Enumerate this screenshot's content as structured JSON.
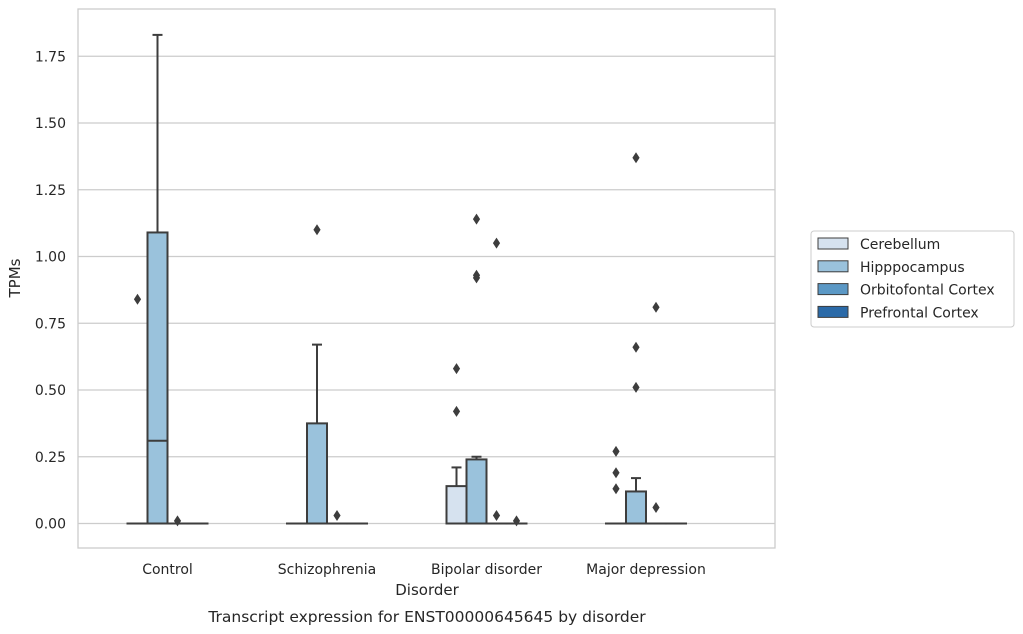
{
  "chart_data": {
    "type": "box",
    "title": "",
    "caption": "Transcript expression for ENST00000645645 by disorder",
    "xlabel": "Disorder",
    "ylabel": "TPMs",
    "ylim": [
      -0.09,
      1.93
    ],
    "yticks": [
      "0.00",
      "0.25",
      "0.50",
      "0.75",
      "1.00",
      "1.25",
      "1.50",
      "1.75"
    ],
    "ytick_values": [
      0,
      0.25,
      0.5,
      0.75,
      1.0,
      1.25,
      1.5,
      1.75
    ],
    "grid": true,
    "legend_position": "right",
    "categories": [
      "Control",
      "Schizophrenia",
      "Bipolar disorder",
      "Major depression"
    ],
    "series": [
      {
        "name": "Cerebellum",
        "color": "#d6e2ef",
        "boxes": [
          {
            "q1": 0,
            "median": 0,
            "q3": 0,
            "whisker_low": 0,
            "whisker_high": 0,
            "outliers": [
              0.84
            ]
          },
          {
            "q1": 0,
            "median": 0,
            "q3": 0,
            "whisker_low": 0,
            "whisker_high": 0,
            "outliers": []
          },
          {
            "q1": 0,
            "median": 0,
            "q3": 0.14,
            "whisker_low": 0,
            "whisker_high": 0.21,
            "outliers": [
              0.42,
              0.58
            ]
          },
          {
            "q1": 0,
            "median": 0,
            "q3": 0,
            "whisker_low": 0,
            "whisker_high": 0,
            "outliers": [
              0.13,
              0.19,
              0.27
            ]
          }
        ]
      },
      {
        "name": "Hipppocampus",
        "color": "#9ac2dc",
        "boxes": [
          {
            "q1": 0,
            "median": 0.31,
            "q3": 1.09,
            "whisker_low": 0,
            "whisker_high": 1.83,
            "outliers": []
          },
          {
            "q1": 0,
            "median": 0,
            "q3": 0.375,
            "whisker_low": 0,
            "whisker_high": 0.67,
            "outliers": [
              1.1
            ]
          },
          {
            "q1": 0,
            "median": 0,
            "q3": 0.24,
            "whisker_low": 0,
            "whisker_high": 0.25,
            "outliers": [
              0.92,
              0.93,
              1.14
            ]
          },
          {
            "q1": 0,
            "median": 0,
            "q3": 0.12,
            "whisker_low": 0,
            "whisker_high": 0.17,
            "outliers": [
              0.51,
              0.66,
              1.37
            ]
          }
        ]
      },
      {
        "name": "Orbitofontal Cortex",
        "color": "#5b98c5",
        "boxes": [
          {
            "q1": 0,
            "median": 0,
            "q3": 0,
            "whisker_low": 0,
            "whisker_high": 0,
            "outliers": [
              0.01
            ]
          },
          {
            "q1": 0,
            "median": 0,
            "q3": 0,
            "whisker_low": 0,
            "whisker_high": 0,
            "outliers": [
              0.03
            ]
          },
          {
            "q1": 0,
            "median": 0,
            "q3": 0,
            "whisker_low": 0,
            "whisker_high": 0,
            "outliers": [
              0.03,
              1.05
            ]
          },
          {
            "q1": 0,
            "median": 0,
            "q3": 0,
            "whisker_low": 0,
            "whisker_high": 0,
            "outliers": [
              0.06,
              0.81
            ]
          }
        ]
      },
      {
        "name": "Prefrontal Cortex",
        "color": "#2b6aa8",
        "boxes": [
          {
            "q1": 0,
            "median": 0,
            "q3": 0,
            "whisker_low": 0,
            "whisker_high": 0,
            "outliers": []
          },
          {
            "q1": 0,
            "median": 0,
            "q3": 0,
            "whisker_low": 0,
            "whisker_high": 0,
            "outliers": []
          },
          {
            "q1": 0,
            "median": 0,
            "q3": 0,
            "whisker_low": 0,
            "whisker_high": 0,
            "outliers": [
              0.01
            ]
          },
          {
            "q1": 0,
            "median": 0,
            "q3": 0,
            "whisker_low": 0,
            "whisker_high": 0,
            "outliers": []
          }
        ]
      }
    ]
  }
}
